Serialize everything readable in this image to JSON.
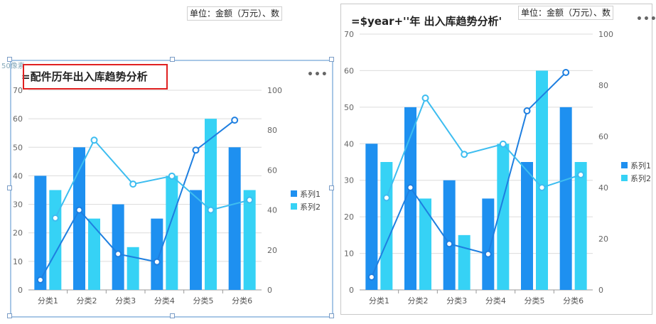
{
  "left_unit_note": "单位：金额（万元）、数",
  "right_unit_note": "单位：金额（万元）、数",
  "px_label": "50像素",
  "charts": [
    {
      "title": "=配件历年出入库趋势分析",
      "more_icon": "•••"
    },
    {
      "title": "=$year+''年 出入库趋势分析'",
      "more_icon": "•••"
    }
  ],
  "colors": {
    "bar1": "#1e90f0",
    "bar2": "#36d2f5",
    "line1": "#1e7fe0",
    "line2": "#3dbdf0",
    "selection_border": "#a8c7e6",
    "highlight_red": "#e02020"
  },
  "chart_data": [
    {
      "type": "bar",
      "categories": [
        "分类1",
        "分类2",
        "分类3",
        "分类4",
        "分类5",
        "分类6"
      ],
      "ylim": [
        0,
        70
      ],
      "y2lim": [
        0,
        100
      ],
      "yticks": [
        "0",
        "10",
        "20",
        "30",
        "40",
        "50",
        "60",
        "70"
      ],
      "y2ticks": [
        "0",
        "20",
        "40",
        "60",
        "80",
        "100"
      ],
      "series": [
        {
          "name": "系列1",
          "values": [
            40,
            50,
            30,
            25,
            35,
            50
          ]
        },
        {
          "name": "系列2",
          "values": [
            35,
            25,
            15,
            40,
            60,
            35
          ]
        }
      ],
      "lines": [
        {
          "values": [
            5,
            40,
            18,
            14,
            70,
            85
          ]
        },
        {
          "values": [
            36,
            75,
            53,
            57,
            40,
            45
          ]
        }
      ],
      "legend": "right"
    },
    {
      "type": "bar",
      "categories": [
        "分类1",
        "分类2",
        "分类3",
        "分类4",
        "分类5",
        "分类6"
      ],
      "ylim": [
        0,
        70
      ],
      "y2lim": [
        0,
        100
      ],
      "yticks": [
        "0",
        "10",
        "20",
        "30",
        "40",
        "50",
        "60",
        "70"
      ],
      "y2ticks": [
        "0",
        "20",
        "40",
        "60",
        "80",
        "100"
      ],
      "series": [
        {
          "name": "系列1",
          "values": [
            40,
            50,
            30,
            25,
            35,
            50
          ]
        },
        {
          "name": "系列2",
          "values": [
            35,
            25,
            15,
            40,
            60,
            35
          ]
        }
      ],
      "lines": [
        {
          "values": [
            5,
            40,
            18,
            14,
            70,
            85
          ]
        },
        {
          "values": [
            36,
            75,
            53,
            57,
            40,
            45
          ]
        }
      ],
      "legend": "right"
    }
  ]
}
